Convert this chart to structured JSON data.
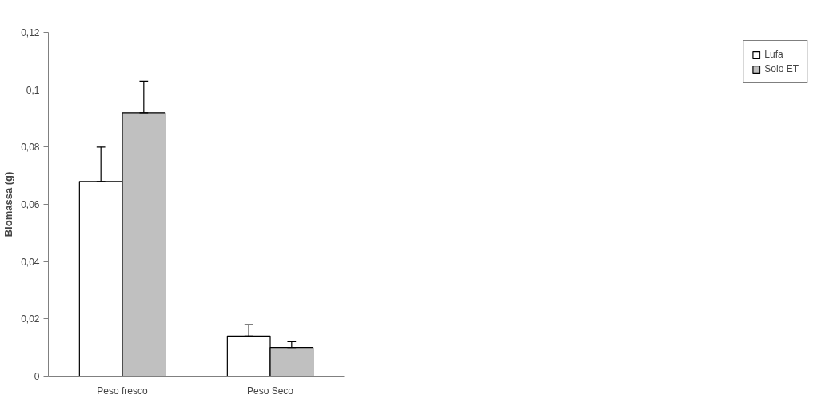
{
  "chart_data": {
    "type": "bar",
    "ylabel": "Biomassa (g)",
    "categories": [
      "Peso fresco",
      "Peso Seco"
    ],
    "series": [
      {
        "name": "Lufa",
        "color": "#ffffff",
        "values": [
          0.068,
          0.014
        ],
        "errors": [
          [
            0.068,
            0.08
          ],
          [
            0.014,
            0.018
          ]
        ]
      },
      {
        "name": "Solo ET",
        "color": "#c0c0c0",
        "values": [
          0.092,
          0.01
        ],
        "errors": [
          [
            0.092,
            0.103
          ],
          [
            0.01,
            0.012
          ]
        ]
      }
    ],
    "ylim": [
      0,
      0.12
    ],
    "yticks": [
      0,
      {
        "value": 0.02,
        "label": "0,02"
      },
      {
        "value": 0.04,
        "label": "0,04"
      },
      {
        "value": 0.06,
        "label": "0,06"
      },
      {
        "value": 0.08,
        "label": "0,08"
      },
      {
        "value": 0.1,
        "label": "0,1"
      },
      {
        "value": 0.12,
        "label": "0,12"
      }
    ],
    "grid": false,
    "legend": "right"
  }
}
